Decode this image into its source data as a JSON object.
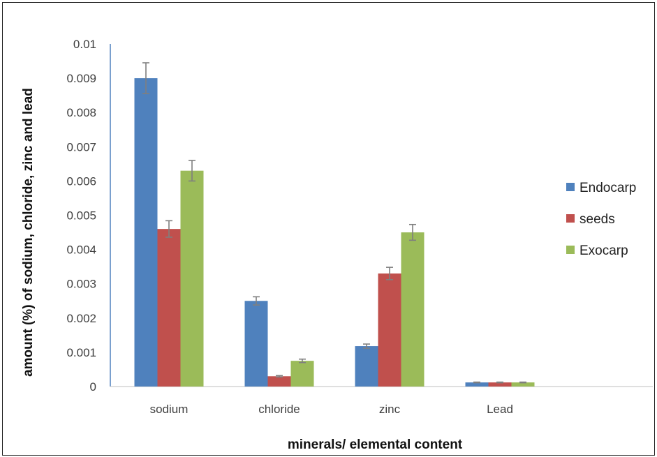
{
  "chart_data": {
    "type": "bar",
    "title": "",
    "xlabel": "minerals/ elemental content",
    "ylabel": "amount (%) of sodium, chloride, zinc and lead",
    "categories": [
      "sodium",
      "chloride",
      "zinc",
      "Lead"
    ],
    "series": [
      {
        "name": "Endocarp",
        "color": "#4F81BD",
        "values": [
          0.009,
          0.0025,
          0.00118,
          0.00012
        ],
        "errors": [
          0.00045,
          0.00012,
          6e-05,
          1e-05
        ]
      },
      {
        "name": "seeds",
        "color": "#C0504D",
        "values": [
          0.0046,
          0.0003,
          0.0033,
          0.00012
        ],
        "errors": [
          0.00024,
          2e-05,
          0.00018,
          1e-05
        ]
      },
      {
        "name": "Exocarp",
        "color": "#9BBB59",
        "values": [
          0.0063,
          0.00075,
          0.0045,
          0.00012
        ],
        "errors": [
          0.0003,
          5e-05,
          0.00023,
          1e-05
        ]
      }
    ],
    "ylim": [
      0,
      0.01
    ],
    "yticks": [
      "0",
      "0.001",
      "0.002",
      "0.003",
      "0.004",
      "0.005",
      "0.006",
      "0.007",
      "0.008",
      "0.009",
      "0.01"
    ],
    "error_bar_color": "#7F7F7F",
    "grid": false,
    "legend_position": "right"
  }
}
